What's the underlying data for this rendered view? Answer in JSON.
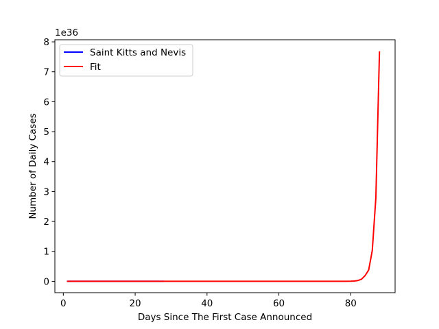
{
  "chart_data": {
    "type": "line",
    "xlabel": "Days Since The First Case Announced",
    "ylabel": "Number of Daily Cases",
    "offset_label": "1e36",
    "xlim": [
      -2.35,
      92.35
    ],
    "ylim": [
      -0.38,
      8.07
    ],
    "xticks": [
      0,
      20,
      40,
      60,
      80
    ],
    "yticks": [
      0,
      1,
      2,
      3,
      4,
      5,
      6,
      7,
      8
    ],
    "legend_position": "upper-left",
    "grid": false,
    "series": [
      {
        "name": "Saint Kitts and Nevis",
        "color": "#0000ff",
        "x": [
          1,
          2,
          3,
          4,
          5,
          6,
          7,
          8,
          9,
          10,
          11,
          12,
          13,
          14,
          15,
          16,
          17,
          18,
          19,
          20,
          21,
          22,
          23,
          24,
          25,
          26,
          27,
          28
        ],
        "y": [
          0,
          0,
          0,
          0,
          0,
          0,
          0,
          0,
          0,
          0,
          0,
          0,
          0,
          0,
          0,
          0,
          0,
          0,
          0,
          0,
          0,
          0,
          0,
          0,
          0,
          0,
          0,
          0
        ]
      },
      {
        "name": "Fit",
        "color": "#ff0000",
        "x": [
          1,
          10,
          20,
          30,
          40,
          50,
          60,
          70,
          78,
          79,
          80,
          81,
          82,
          83,
          84,
          85,
          86,
          87,
          88
        ],
        "y": [
          0,
          0,
          0,
          0,
          0,
          0,
          0,
          0,
          0.0005,
          0.0013,
          0.0035,
          0.0095,
          0.026,
          0.07,
          0.19,
          0.38,
          1.03,
          2.8,
          7.68
        ]
      }
    ]
  }
}
